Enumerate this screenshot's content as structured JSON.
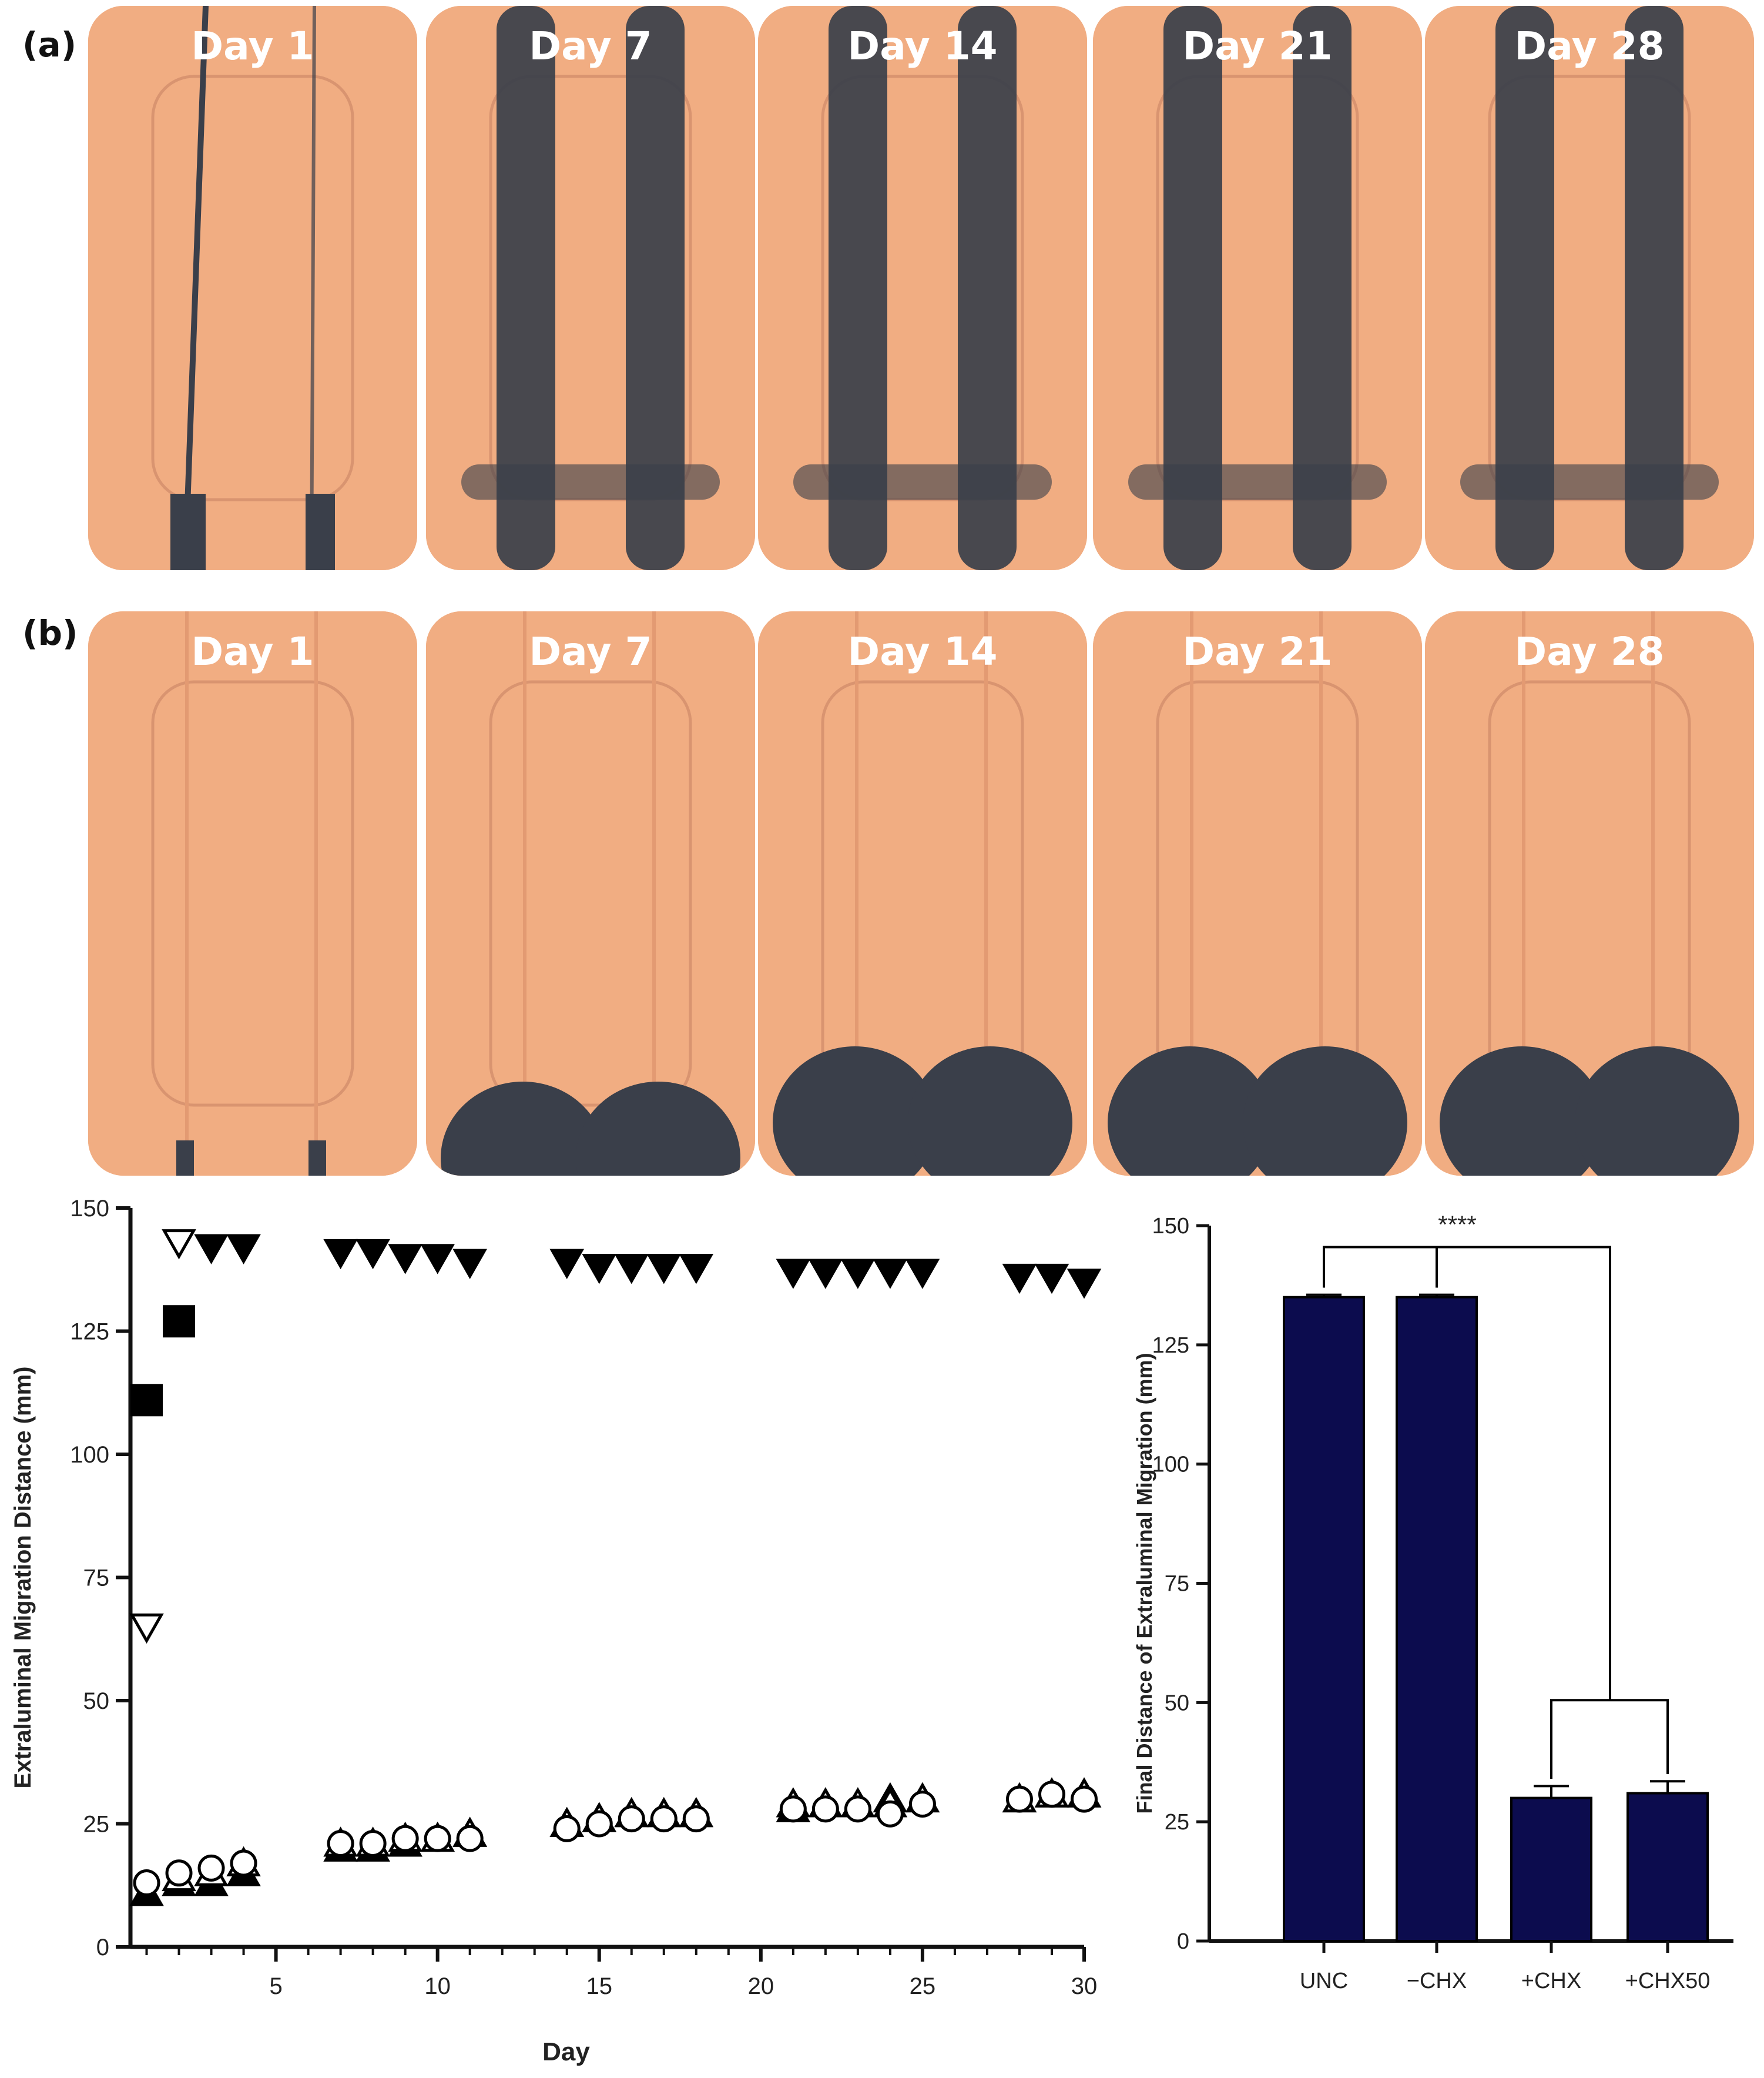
{
  "panel_a": {
    "letter": "(a)",
    "plates": [
      {
        "label": "Day 1",
        "swarm": "thin"
      },
      {
        "label": "Day 7",
        "swarm": "full"
      },
      {
        "label": "Day 14",
        "swarm": "full"
      },
      {
        "label": "Day 21",
        "swarm": "full"
      },
      {
        "label": "Day 28",
        "swarm": "full"
      }
    ]
  },
  "panel_b": {
    "letter": "(b)",
    "plates": [
      {
        "label": "Day 1",
        "swarm": "none"
      },
      {
        "label": "Day 7",
        "swarm": "bottom"
      },
      {
        "label": "Day 14",
        "swarm": "bottom"
      },
      {
        "label": "Day 21",
        "swarm": "bottom"
      },
      {
        "label": "Day 28",
        "swarm": "bottom"
      }
    ]
  },
  "colors": {
    "plate": "#f1ad82",
    "plate_inner": "#eca47a",
    "swarm": "#3a3f4a",
    "bar": "#0c0c4e",
    "axis": "#111111"
  },
  "chart_data": [
    {
      "type": "scatter",
      "title": "",
      "xlabel": "Day",
      "ylabel": "Extraluminal Migration Distance (mm)",
      "xlim": [
        0.5,
        30
      ],
      "ylim": [
        0,
        150
      ],
      "xticks": [
        5,
        10,
        15,
        20,
        25,
        30
      ],
      "yticks": [
        0,
        25,
        50,
        75,
        100,
        125,
        150
      ],
      "grid": false,
      "series": [
        {
          "marker": "filled-square",
          "points": [
            [
              1,
              111
            ],
            [
              2,
              127
            ]
          ]
        },
        {
          "marker": "open-down-triangle",
          "points": [
            [
              1,
              65
            ],
            [
              2,
              143
            ]
          ]
        },
        {
          "marker": "filled-down-triangle",
          "points": [
            [
              3,
              142
            ],
            [
              4,
              142
            ],
            [
              7,
              141
            ],
            [
              8,
              141
            ],
            [
              9,
              140
            ],
            [
              10,
              140
            ],
            [
              11,
              139
            ],
            [
              14,
              139
            ],
            [
              15,
              138
            ],
            [
              16,
              138
            ],
            [
              17,
              138
            ],
            [
              18,
              138
            ],
            [
              21,
              137
            ],
            [
              22,
              137
            ],
            [
              23,
              137
            ],
            [
              24,
              137
            ],
            [
              25,
              137
            ],
            [
              28,
              136
            ],
            [
              29,
              136
            ],
            [
              30,
              135
            ]
          ]
        },
        {
          "marker": "filled-up-triangle",
          "points": [
            [
              1,
              11
            ],
            [
              2,
              13
            ],
            [
              3,
              13
            ],
            [
              4,
              15
            ],
            [
              7,
              20
            ],
            [
              8,
              20
            ],
            [
              9,
              21
            ],
            [
              10,
              22
            ],
            [
              11,
              23
            ],
            [
              14,
              25
            ],
            [
              15,
              26
            ],
            [
              16,
              27
            ],
            [
              17,
              27
            ],
            [
              18,
              27
            ],
            [
              21,
              28
            ],
            [
              22,
              29
            ],
            [
              23,
              29
            ],
            [
              24,
              30
            ],
            [
              25,
              30
            ],
            [
              28,
              30
            ],
            [
              29,
              31
            ],
            [
              30,
              31
            ]
          ]
        },
        {
          "marker": "open-up-triangle",
          "points": [
            [
              2,
              14
            ],
            [
              3,
              15
            ],
            [
              4,
              17
            ],
            [
              7,
              21
            ],
            [
              8,
              21
            ],
            [
              9,
              22
            ],
            [
              10,
              22
            ],
            [
              11,
              23
            ],
            [
              14,
              25
            ],
            [
              15,
              26
            ],
            [
              16,
              27
            ],
            [
              17,
              27
            ],
            [
              18,
              27
            ],
            [
              21,
              29
            ],
            [
              22,
              29
            ],
            [
              23,
              29
            ],
            [
              24,
              29
            ],
            [
              25,
              30
            ],
            [
              28,
              30
            ],
            [
              29,
              31
            ],
            [
              30,
              31
            ]
          ]
        },
        {
          "marker": "open-circle",
          "points": [
            [
              1,
              13
            ],
            [
              2,
              15
            ],
            [
              3,
              16
            ],
            [
              4,
              17
            ],
            [
              7,
              21
            ],
            [
              8,
              21
            ],
            [
              9,
              22
            ],
            [
              10,
              22
            ],
            [
              11,
              22
            ],
            [
              14,
              24
            ],
            [
              15,
              25
            ],
            [
              16,
              26
            ],
            [
              17,
              26
            ],
            [
              18,
              26
            ],
            [
              21,
              28
            ],
            [
              22,
              28
            ],
            [
              23,
              28
            ],
            [
              24,
              27
            ],
            [
              25,
              29
            ],
            [
              28,
              30
            ],
            [
              29,
              31
            ],
            [
              30,
              30
            ]
          ]
        }
      ]
    },
    {
      "type": "bar",
      "title": "",
      "xlabel": "",
      "ylabel": "Final Distance of Extraluminal Migration (mm)",
      "categories": [
        "UNC",
        "−CHX",
        "+CHX",
        "+CHX50"
      ],
      "values": [
        135,
        135,
        30,
        31
      ],
      "errors": [
        0.5,
        0.5,
        2.5,
        2.5
      ],
      "ylim": [
        0,
        150
      ],
      "yticks": [
        0,
        25,
        50,
        75,
        100,
        125,
        150
      ],
      "grid": false,
      "annotations": [
        {
          "text": "****",
          "from": [
            "UNC",
            "−CHX"
          ],
          "to": [
            "+CHX",
            "+CHX50"
          ]
        }
      ]
    }
  ]
}
